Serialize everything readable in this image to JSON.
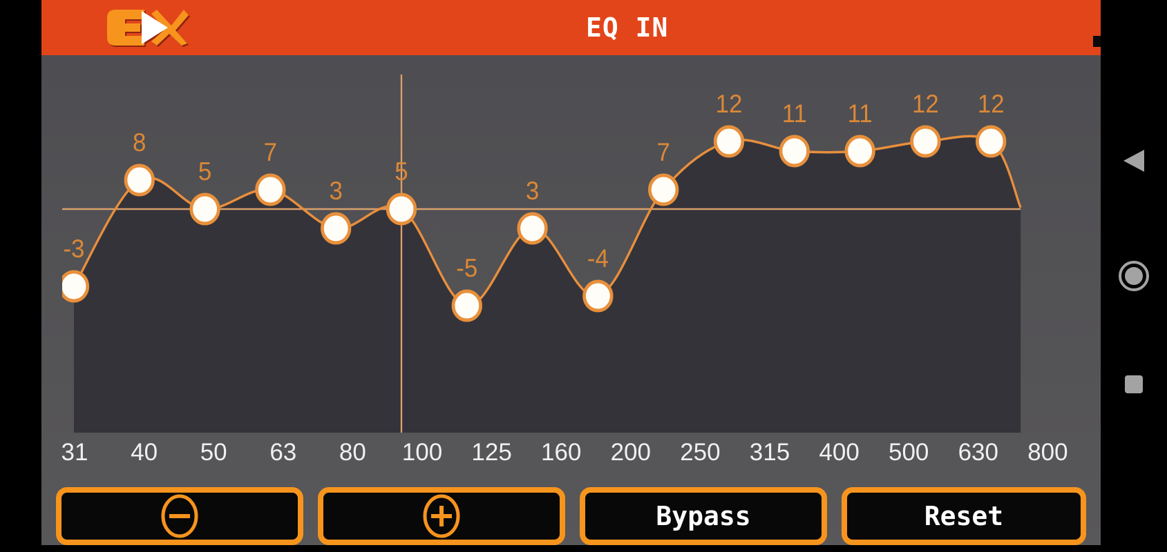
{
  "header": {
    "logo_text": "EX",
    "title": "EQ IN",
    "signal_icon": "signal-bars-icon"
  },
  "chart_data": {
    "type": "line",
    "title": "EQ IN",
    "categories": [
      "31",
      "40",
      "50",
      "63",
      "80",
      "100",
      "125",
      "160",
      "200",
      "250",
      "315",
      "400",
      "500",
      "630",
      "800"
    ],
    "values": [
      -3,
      8,
      5,
      7,
      3,
      5,
      -5,
      3,
      -4,
      7,
      12,
      11,
      11,
      12,
      12
    ],
    "selected_band": "100",
    "selected_value": 5,
    "xlabel": "",
    "ylabel": "",
    "ylim": [
      -18,
      18
    ],
    "grid": "crosshair on selected point only",
    "legend": "none",
    "point_style": "white circle with orange ring, value label above each point",
    "area_fill": "dark under curve"
  },
  "controls": {
    "decrease": {
      "icon": "minus-circle-icon",
      "label": ""
    },
    "increase": {
      "icon": "plus-circle-icon",
      "label": ""
    },
    "bypass": {
      "label": "Bypass"
    },
    "reset": {
      "label": "Reset"
    }
  },
  "nav": {
    "back": {
      "icon": "back-triangle-icon"
    },
    "home": {
      "icon": "home-circle-icon"
    },
    "recents": {
      "icon": "recents-square-icon"
    }
  },
  "colors": {
    "header_bg": "#E2451A",
    "logo_orange": "#F7941D",
    "curve": "#E88F3C",
    "point_fill": "#FFFDF7",
    "point_border": "#E8903C",
    "value_text": "#DB8837",
    "crosshair": "#D9A06C",
    "freq_text": "#F0F0F0",
    "under_curve_fill": "#343339",
    "app_bg": "#545357",
    "button_border": "#F7941D",
    "button_bg": "#080808",
    "button_text": "#FFFFFF",
    "nav_icon": "#A3A3A3",
    "bezel": "#000000"
  }
}
